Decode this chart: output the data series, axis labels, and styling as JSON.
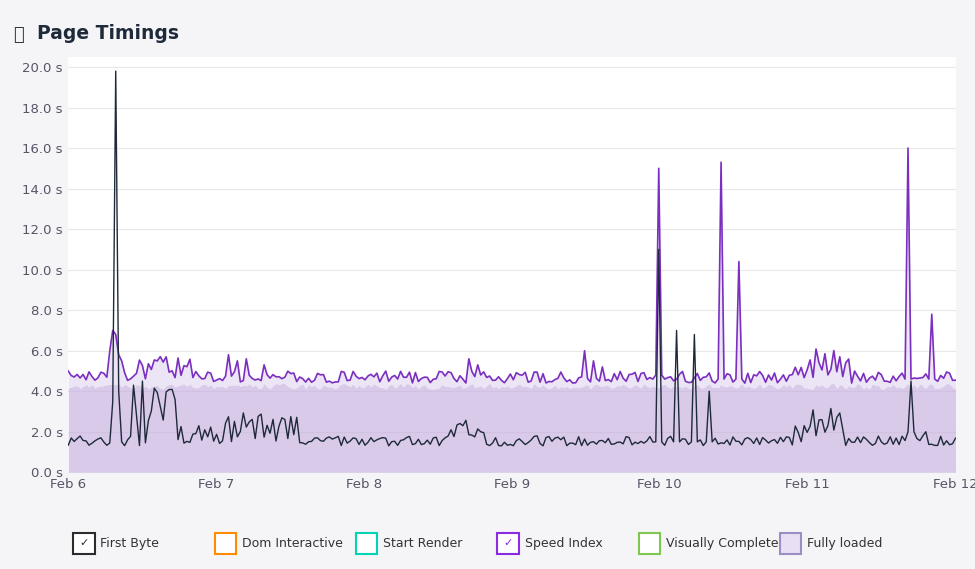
{
  "title": "Page Timings",
  "ylim": [
    0,
    20.5
  ],
  "yticks": [
    0.0,
    2.0,
    4.0,
    6.0,
    8.0,
    10.0,
    12.0,
    14.0,
    16.0,
    18.0,
    20.0
  ],
  "ytick_labels": [
    "0.0 s",
    "2.0 s",
    "4.0 s",
    "6.0 s",
    "8.0 s",
    "10.0 s",
    "12.0 s",
    "14.0 s",
    "16.0 s",
    "18.0 s",
    "20.0 s"
  ],
  "xtick_labels": [
    "Feb 6",
    "Feb 7",
    "Feb 8",
    "Feb 9",
    "Feb 10",
    "Feb 11",
    "Feb 12"
  ],
  "bg_color": "#f5f5f7",
  "plot_bg": "#ffffff",
  "grid_color": "#e8e8e8",
  "first_byte_color": "#1e2a3a",
  "speed_index_color": "#7b2fbe",
  "fill_dark_color": "#c5aee0",
  "fill_light_color": "#ddd0f0",
  "legend_items": [
    {
      "label": "First Byte",
      "box_face": "#ffffff",
      "box_edge": "#2d2d2d",
      "check": true
    },
    {
      "label": "Dom Interactive",
      "box_face": "#ffffff",
      "box_edge": "#ff8c00",
      "check": false
    },
    {
      "label": "Start Render",
      "box_face": "#ffffff",
      "box_edge": "#00d4b4",
      "check": false
    },
    {
      "label": "Speed Index",
      "box_face": "#ffffff",
      "box_edge": "#8b2be2",
      "check": true
    },
    {
      "label": "Visually Complete",
      "box_face": "#ffffff",
      "box_edge": "#7ec850",
      "check": false
    },
    {
      "label": "Fully loaded",
      "box_face": "#e8dff5",
      "box_edge": "#9b8ec4",
      "check": false
    }
  ]
}
